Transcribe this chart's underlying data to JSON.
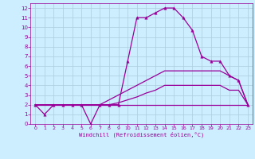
{
  "title": "",
  "xlabel": "Windchill (Refroidissement éolien,°C)",
  "background_color": "#cceeff",
  "grid_color": "#aaccdd",
  "line_color": "#990099",
  "xlim": [
    -0.5,
    23.5
  ],
  "ylim": [
    0,
    12.5
  ],
  "xticks": [
    0,
    1,
    2,
    3,
    4,
    5,
    6,
    7,
    8,
    9,
    10,
    11,
    12,
    13,
    14,
    15,
    16,
    17,
    18,
    19,
    20,
    21,
    22,
    23
  ],
  "yticks": [
    0,
    1,
    2,
    3,
    4,
    5,
    6,
    7,
    8,
    9,
    10,
    11,
    12
  ],
  "lines": [
    {
      "x": [
        0,
        1,
        2,
        3,
        4,
        5,
        6,
        7,
        8,
        9,
        10,
        11,
        12,
        13,
        14,
        15,
        16,
        17,
        18,
        19,
        20,
        21,
        22,
        23
      ],
      "y": [
        2,
        1,
        2,
        2,
        2,
        2,
        0,
        2,
        2,
        2,
        6.5,
        11,
        11,
        11.5,
        12,
        12,
        11,
        9.7,
        7,
        6.5,
        6.5,
        5,
        4.5,
        2
      ],
      "marker": true,
      "lw": 0.9
    },
    {
      "x": [
        0,
        1,
        2,
        3,
        4,
        5,
        6,
        7,
        8,
        9,
        10,
        11,
        12,
        13,
        14,
        15,
        16,
        17,
        18,
        19,
        20,
        21,
        22,
        23
      ],
      "y": [
        2,
        2,
        2,
        2,
        2,
        2,
        2,
        2,
        2.5,
        3,
        3.5,
        4,
        4.5,
        5,
        5.5,
        5.5,
        5.5,
        5.5,
        5.5,
        5.5,
        5.5,
        5,
        4.5,
        2
      ],
      "marker": false,
      "lw": 0.9
    },
    {
      "x": [
        0,
        1,
        2,
        3,
        4,
        5,
        6,
        7,
        8,
        9,
        10,
        11,
        12,
        13,
        14,
        15,
        16,
        17,
        18,
        19,
        20,
        21,
        22,
        23
      ],
      "y": [
        2,
        2,
        2,
        2,
        2,
        2,
        2,
        2,
        2,
        2.2,
        2.5,
        2.8,
        3.2,
        3.5,
        4,
        4,
        4,
        4,
        4,
        4,
        4,
        3.5,
        3.5,
        2
      ],
      "marker": false,
      "lw": 0.9
    },
    {
      "x": [
        0,
        23
      ],
      "y": [
        2,
        2
      ],
      "marker": false,
      "lw": 0.9
    }
  ]
}
